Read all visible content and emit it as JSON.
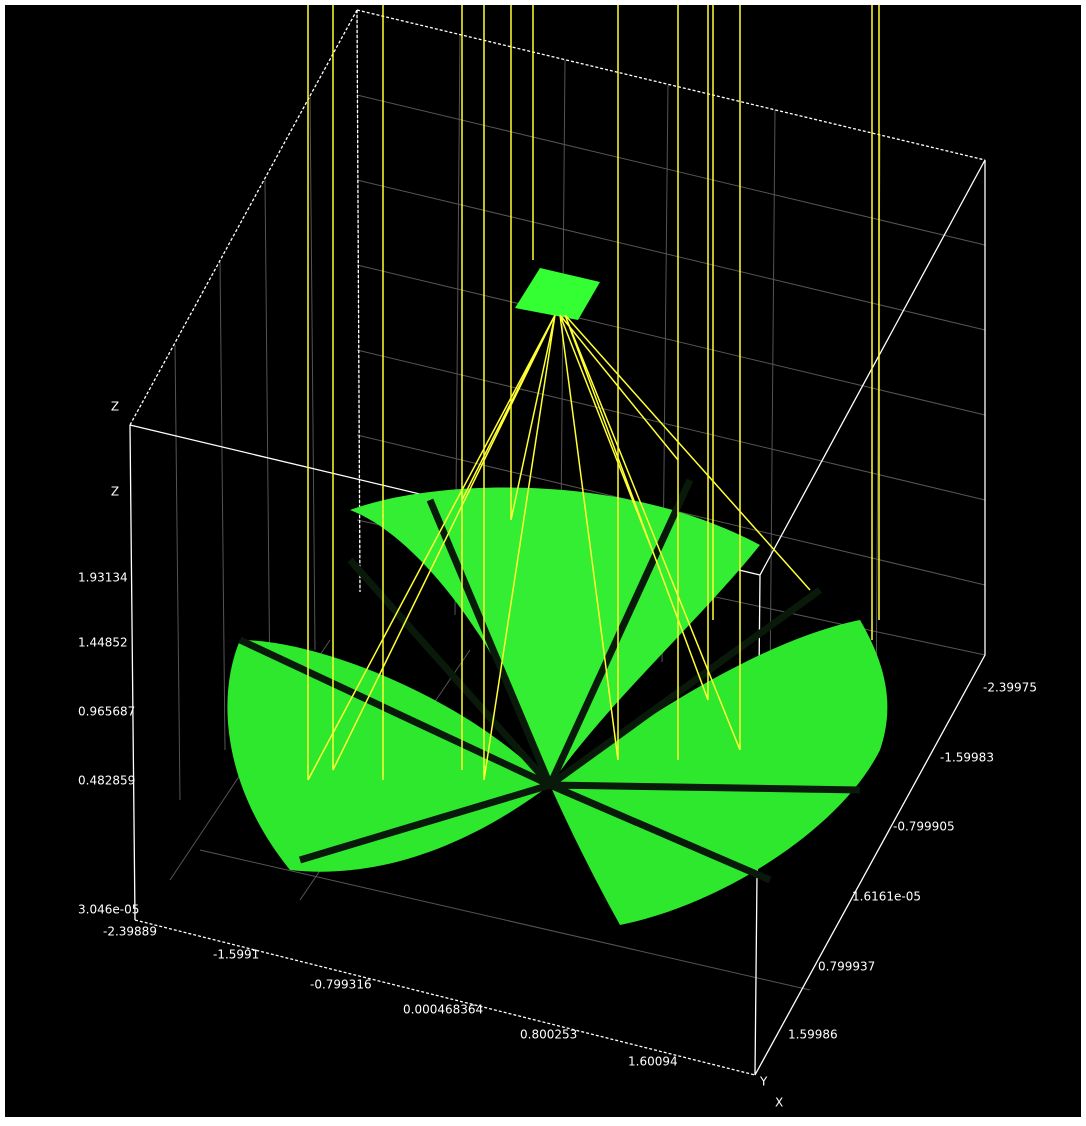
{
  "axes": {
    "z": {
      "names": [
        "Z",
        "Z"
      ],
      "ticks": [
        "1.93134",
        "1.44852",
        "0.965687",
        "0.482859",
        "3.046e-05"
      ]
    },
    "x": {
      "ticks": [
        "-2.39889",
        "-1.5991",
        "-0.799316",
        "0.000468364",
        "0.800253",
        "1.60094"
      ]
    },
    "y": {
      "ticks": [
        "-2.39975",
        "-1.59983",
        "-0.799905",
        "1.6161e-05",
        "0.799937",
        "1.59986"
      ]
    },
    "corner_labels": [
      "Y",
      "X"
    ]
  }
}
